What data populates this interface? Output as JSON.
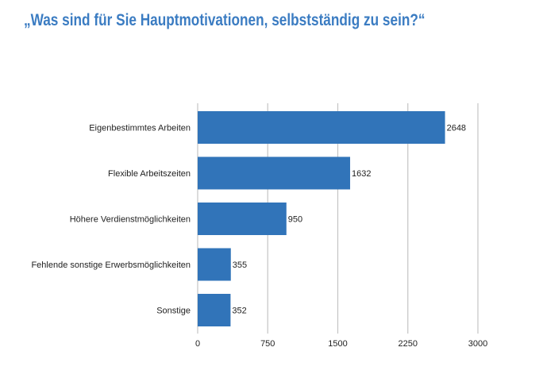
{
  "chart_data": {
    "type": "bar",
    "orientation": "horizontal",
    "title": "„Was sind für Sie Hauptmotivationen, selbstständig zu sein?“",
    "categories": [
      "Eigenbestimmtes Arbeiten",
      "Flexible Arbeitszeiten",
      "Höhere Verdienstmöglichkeiten",
      "Fehlende sonstige Erwerbsmöglichkeiten",
      "Sonstige"
    ],
    "values": [
      2648,
      1632,
      950,
      355,
      352
    ],
    "xlim": [
      0,
      3000
    ],
    "xticks": [
      0,
      750,
      1500,
      2250,
      3000
    ],
    "xlabel": "",
    "ylabel": "",
    "grid": true,
    "bar_color": "#3174b9",
    "title_color": "#3b7cc2"
  }
}
